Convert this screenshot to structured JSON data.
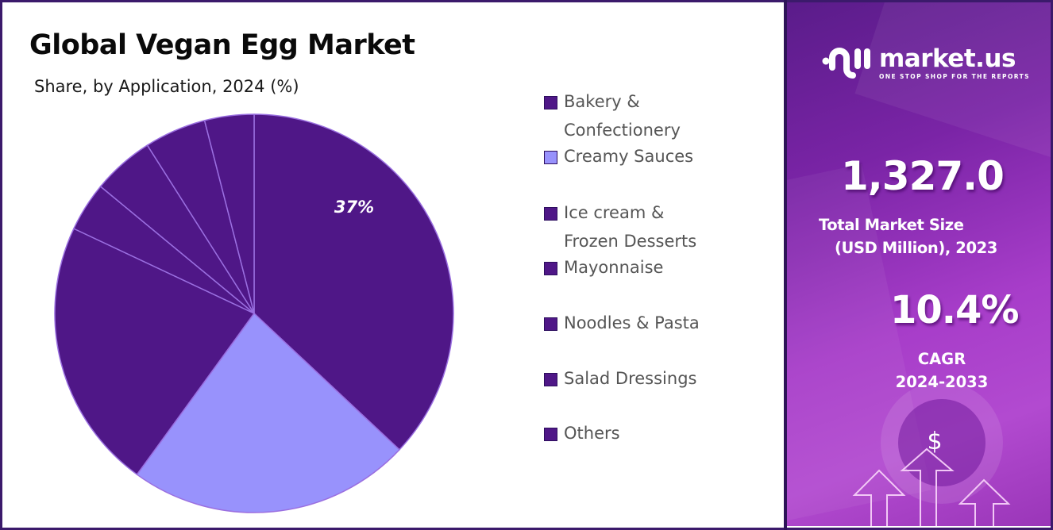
{
  "header": {
    "title": "Global Vegan Egg Market",
    "subtitle": "Share, by Application, 2024 (%)"
  },
  "colors": {
    "dark_slice": "#4f1787",
    "light_slice": "#9892fc",
    "slice_border": "#9a6fe0",
    "frame": "#3b1a6b"
  },
  "chart_data": {
    "type": "pie",
    "title": "Global Vegan Egg Market",
    "subtitle": "Share, by Application, 2024 (%)",
    "categories": [
      "Bakery & Confectionery",
      "Creamy Sauces",
      "Ice cream & Frozen Desserts",
      "Mayonnaise",
      "Noodles & Pasta",
      "Salad Dressings",
      "Others"
    ],
    "values": [
      37,
      23,
      22,
      4,
      5,
      5,
      4
    ],
    "colors": [
      "#4f1787",
      "#9892fc",
      "#4f1787",
      "#4f1787",
      "#4f1787",
      "#4f1787",
      "#4f1787"
    ],
    "data_labels": [
      {
        "category": "Bakery & Confectionery",
        "text": "37%"
      }
    ],
    "start_angle": "12 o'clock, clockwise",
    "legend_position": "right"
  },
  "pie": {
    "label_text": "37%"
  },
  "legend": {
    "items": [
      {
        "label": "Bakery &\nConfectionery",
        "color": "#4f1787"
      },
      {
        "label": "Creamy Sauces",
        "color": "#9892fc"
      },
      {
        "label": "Ice cream &\nFrozen Desserts",
        "color": "#4f1787"
      },
      {
        "label": "Mayonnaise",
        "color": "#4f1787"
      },
      {
        "label": "Noodles & Pasta",
        "color": "#4f1787"
      },
      {
        "label": "Salad Dressings",
        "color": "#4f1787"
      },
      {
        "label": "Others",
        "color": "#4f1787"
      }
    ]
  },
  "brand": {
    "name": "market.us",
    "tagline": "ONE STOP SHOP FOR THE REPORTS",
    "icon": "market-us-logo-icon"
  },
  "stats": {
    "market_size_value": "1,327.0",
    "market_size_label_line1": "Total Market Size",
    "market_size_label_line2": "(USD Million), 2023",
    "cagr_value": "10.4%",
    "cagr_label_line1": "CAGR",
    "cagr_label_line2": "2024-2033"
  },
  "decor": {
    "dollar_symbol": "$",
    "icons": [
      "dollar-icon",
      "up-arrow-icon"
    ]
  }
}
